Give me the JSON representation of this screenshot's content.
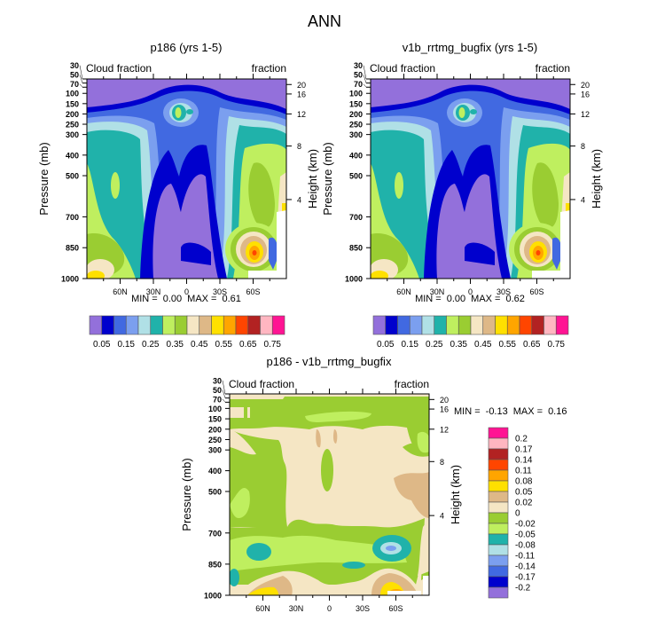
{
  "figure": {
    "title": "ANN"
  },
  "colors": {
    "levels16": [
      "#9370DB",
      "#0000CD",
      "#4169E1",
      "#7B9FEF",
      "#B0E0E6",
      "#20B2AA",
      "#BFEF5F",
      "#9ACD32",
      "#F5E6C4",
      "#DEB887",
      "#FFE000",
      "#FFA500",
      "#FF4500",
      "#B22222",
      "#FFB6C1",
      "#FF1493"
    ]
  },
  "chart_data": [
    {
      "type": "heatmap",
      "title": "p186 (yrs 1-5)",
      "left_label": "Cloud fraction",
      "right_label": "fraction",
      "xlabel": "",
      "ylabel": "Pressure (mb)",
      "y2label": "Height (km)",
      "x_ticks": [
        "60N",
        "30N",
        "0",
        "30S",
        "60S"
      ],
      "x_tick_values": [
        60,
        30,
        0,
        -30,
        -60
      ],
      "xlim": [
        90,
        -90
      ],
      "y_ticks": [
        30,
        50,
        70,
        100,
        150,
        200,
        250,
        300,
        400,
        500,
        700,
        850,
        1000
      ],
      "ylim": [
        30,
        1000
      ],
      "y2_ticks": [
        20,
        16,
        12,
        8,
        4
      ],
      "y2_tick_pressures": [
        57,
        103,
        200,
        356,
        616
      ],
      "stats": {
        "min_label": "MIN =",
        "min": "0.00",
        "max_label": "MAX =",
        "max": "0.61"
      },
      "colorbar": {
        "orientation": "horizontal",
        "boundaries": [
          0.05,
          0.1,
          0.15,
          0.2,
          0.25,
          0.3,
          0.35,
          0.4,
          0.45,
          0.5,
          0.55,
          0.6,
          0.65,
          0.7,
          0.75
        ],
        "labels": [
          "0.05",
          "0.15",
          "0.25",
          "0.35",
          "0.45",
          "0.55",
          "0.65",
          "0.75"
        ]
      }
    },
    {
      "type": "heatmap",
      "title": "v1b_rrtmg_bugfix (yrs 1-5)",
      "left_label": "Cloud fraction",
      "right_label": "fraction",
      "xlabel": "",
      "ylabel": "Pressure (mb)",
      "y2label": "Height (km)",
      "x_ticks": [
        "60N",
        "30N",
        "0",
        "30S",
        "60S"
      ],
      "x_tick_values": [
        60,
        30,
        0,
        -30,
        -60
      ],
      "xlim": [
        90,
        -90
      ],
      "y_ticks": [
        30,
        50,
        70,
        100,
        150,
        200,
        250,
        300,
        400,
        500,
        700,
        850,
        1000
      ],
      "ylim": [
        30,
        1000
      ],
      "y2_ticks": [
        20,
        16,
        12,
        8,
        4
      ],
      "y2_tick_pressures": [
        57,
        103,
        200,
        356,
        616
      ],
      "stats": {
        "min_label": "MIN =",
        "min": "0.00",
        "max_label": "MAX =",
        "max": "0.62"
      },
      "colorbar": {
        "orientation": "horizontal",
        "boundaries": [
          0.05,
          0.1,
          0.15,
          0.2,
          0.25,
          0.3,
          0.35,
          0.4,
          0.45,
          0.5,
          0.55,
          0.6,
          0.65,
          0.7,
          0.75
        ],
        "labels": [
          "0.05",
          "0.15",
          "0.25",
          "0.35",
          "0.45",
          "0.55",
          "0.65",
          "0.75"
        ]
      }
    },
    {
      "type": "heatmap",
      "title": "p186 - v1b_rrtmg_bugfix",
      "left_label": "Cloud fraction",
      "right_label": "fraction",
      "xlabel": "",
      "ylabel": "Pressure (mb)",
      "y2label": "Height (km)",
      "x_ticks": [
        "60N",
        "30N",
        "0",
        "30S",
        "60S"
      ],
      "x_tick_values": [
        60,
        30,
        0,
        -30,
        -60
      ],
      "xlim": [
        90,
        -90
      ],
      "y_ticks": [
        30,
        50,
        70,
        100,
        150,
        200,
        250,
        300,
        400,
        500,
        700,
        850,
        1000
      ],
      "ylim": [
        30,
        1000
      ],
      "y2_ticks": [
        20,
        16,
        12,
        8,
        4
      ],
      "y2_tick_pressures": [
        57,
        103,
        200,
        356,
        616
      ],
      "stats": {
        "min_label": "MIN =",
        "min": "-0.13",
        "max_label": "MAX =",
        "max": "0.16"
      },
      "colorbar": {
        "orientation": "vertical",
        "boundaries": [
          0.2,
          0.17,
          0.14,
          0.11,
          0.08,
          0.05,
          0.02,
          0,
          -0.02,
          -0.05,
          -0.08,
          -0.11,
          -0.14,
          -0.17,
          -0.2
        ],
        "labels": [
          "0.2",
          "0.17",
          "0.14",
          "0.11",
          "0.08",
          "0.05",
          "0.02",
          "0",
          "-0.02",
          "-0.05",
          "-0.08",
          "-0.11",
          "-0.14",
          "-0.17",
          "-0.2"
        ]
      }
    }
  ]
}
